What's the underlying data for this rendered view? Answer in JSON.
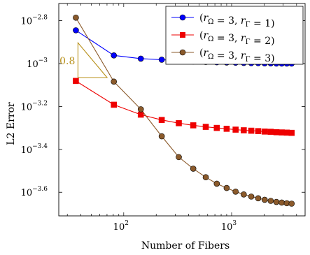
{
  "chart_data": {
    "type": "line",
    "xlabel": "Number of Fibers",
    "ylabel": "L2 Error",
    "x_scale": "log",
    "y_scale": "log",
    "xlim": [
      25,
      4800
    ],
    "ylim": [
      -3.71,
      -2.72
    ],
    "y_ticks": [
      {
        "exp": -2.8,
        "base": "10",
        "sup": "−2.8"
      },
      {
        "exp": -3.0,
        "base": "10",
        "sup": "−3"
      },
      {
        "exp": -3.2,
        "base": "10",
        "sup": "−3.2"
      },
      {
        "exp": -3.4,
        "base": "10",
        "sup": "−3.4"
      },
      {
        "exp": -3.6,
        "base": "10",
        "sup": "−3.6"
      }
    ],
    "x_ticks": [
      {
        "value": 100,
        "base": "10",
        "sup": "2"
      },
      {
        "value": 1000,
        "base": "10",
        "sup": "3"
      }
    ],
    "grid": false,
    "legend_position": "top-right",
    "x": [
      36,
      81,
      144,
      225,
      324,
      441,
      576,
      729,
      900,
      1089,
      1296,
      1521,
      1764,
      2025,
      2304,
      2601,
      2916,
      3249,
      3600
    ],
    "series": [
      {
        "name": "(rΩ = 3, rΓ = 1)",
        "legend": {
          "open": "(",
          "r1": "r",
          "sub1": "Ω",
          "eq1": " = 3, ",
          "r2": "r",
          "sub2": "Γ",
          "eq2": " = 1)"
        },
        "color": "#0000ff",
        "marker": "circle",
        "values_exp": [
          -2.845,
          -2.962,
          -2.977,
          -2.982,
          -2.986,
          -2.99,
          -2.992,
          -2.994,
          -2.995,
          -2.996,
          -2.997,
          -2.998,
          -2.998,
          -2.999,
          -2.999,
          -3.0,
          -3.0,
          -3.0,
          -3.0
        ]
      },
      {
        "name": "(rΩ = 3, rΓ = 2)",
        "legend": {
          "open": "(",
          "r1": "r",
          "sub1": "Ω",
          "eq1": " = 3, ",
          "r2": "r",
          "sub2": "Γ",
          "eq2": " = 2)"
        },
        "color": "#ee0000",
        "marker": "square",
        "values_exp": [
          -3.081,
          -3.192,
          -3.238,
          -3.263,
          -3.278,
          -3.288,
          -3.295,
          -3.3,
          -3.304,
          -3.308,
          -3.311,
          -3.313,
          -3.315,
          -3.317,
          -3.318,
          -3.32,
          -3.321,
          -3.322,
          -3.323
        ]
      },
      {
        "name": "(rΩ = 3, rΓ = 3)",
        "legend": {
          "open": "(",
          "r1": "r",
          "sub1": "Ω",
          "eq1": " = 3, ",
          "r2": "r",
          "sub2": "Γ",
          "eq2": " = 3)"
        },
        "color": "#8b5a2b",
        "marker": "circle",
        "values_exp": [
          -2.786,
          -3.084,
          -3.213,
          -3.339,
          -3.436,
          -3.49,
          -3.53,
          -3.56,
          -3.58,
          -3.597,
          -3.61,
          -3.62,
          -3.628,
          -3.635,
          -3.64,
          -3.645,
          -3.648,
          -3.651,
          -3.653
        ]
      }
    ],
    "annotations": [
      {
        "text": "0.8",
        "type": "slope-triangle",
        "color": "#b8901a"
      }
    ]
  }
}
